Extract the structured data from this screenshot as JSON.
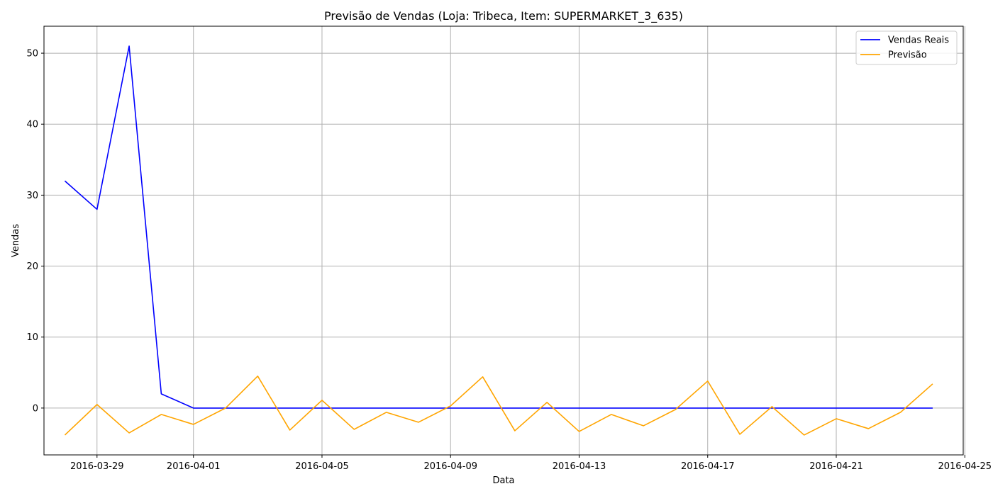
{
  "chart_data": {
    "type": "line",
    "title": "Previsão de Vendas (Loja: Tribeca, Item: SUPERMARKET_3_635)",
    "xlabel": "Data",
    "ylabel": "Vendas",
    "x": [
      "2016-03-28",
      "2016-03-29",
      "2016-03-30",
      "2016-03-31",
      "2016-04-01",
      "2016-04-02",
      "2016-04-03",
      "2016-04-04",
      "2016-04-05",
      "2016-04-06",
      "2016-04-07",
      "2016-04-08",
      "2016-04-09",
      "2016-04-10",
      "2016-04-11",
      "2016-04-12",
      "2016-04-13",
      "2016-04-14",
      "2016-04-15",
      "2016-04-16",
      "2016-04-17",
      "2016-04-18",
      "2016-04-19",
      "2016-04-20",
      "2016-04-21",
      "2016-04-22",
      "2016-04-23",
      "2016-04-24"
    ],
    "xlim": [
      "2016-03-27",
      "2016-04-25"
    ],
    "ylim": [
      -6.6,
      53.8
    ],
    "x_ticks": [
      "2016-03-29",
      "2016-04-01",
      "2016-04-05",
      "2016-04-09",
      "2016-04-13",
      "2016-04-17",
      "2016-04-21",
      "2016-04-25"
    ],
    "y_ticks": [
      0,
      10,
      20,
      30,
      40,
      50
    ],
    "grid": true,
    "legend_position": "top-right",
    "series": [
      {
        "name": "Vendas Reais",
        "color": "#0000ff",
        "values": [
          32,
          28,
          51,
          2,
          0,
          0,
          0,
          0,
          0,
          0,
          0,
          0,
          0,
          0,
          0,
          0,
          0,
          0,
          0,
          0,
          0,
          0,
          0,
          0,
          0,
          0,
          0,
          0
        ]
      },
      {
        "name": "Previsão",
        "color": "#ffa500",
        "values": [
          -3.8,
          0.5,
          -3.5,
          -0.9,
          -2.3,
          0,
          4.5,
          -3.1,
          1.1,
          -3.0,
          -0.6,
          -2.0,
          0.3,
          4.4,
          -3.2,
          0.8,
          -3.3,
          -0.9,
          -2.5,
          -0.2,
          3.8,
          -3.7,
          0.2,
          -3.8,
          -1.5,
          -2.9,
          -0.6,
          3.4
        ]
      }
    ]
  }
}
